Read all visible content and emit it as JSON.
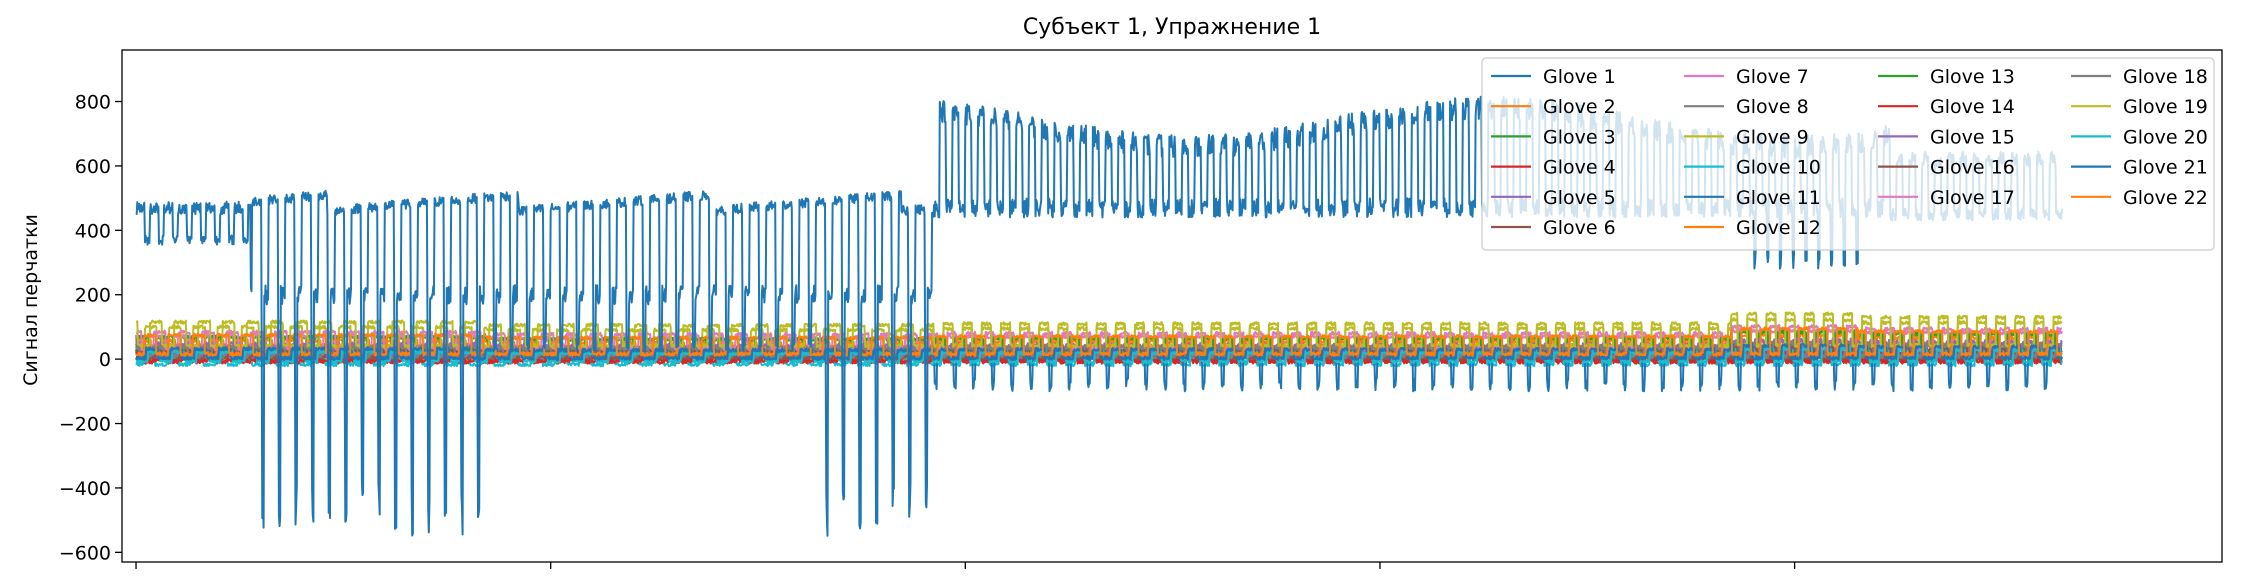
{
  "chart_data": {
    "type": "line",
    "title": "Субъект 1, Упражнение 1",
    "xlabel": "",
    "ylabel": "Сигнал перчатки",
    "ylim": [
      -630,
      960
    ],
    "xlim": [
      -22,
      3270
    ],
    "yticks": [
      -600,
      -400,
      -200,
      0,
      200,
      400,
      600,
      800
    ],
    "ytick_labels": [
      "−600",
      "−400",
      "−200",
      "0",
      "200",
      "400",
      "600",
      "800"
    ],
    "xticks": [
      0,
      650,
      1300,
      1950,
      2600
    ],
    "xtick_labels": [
      "",
      "",
      "",
      "",
      ""
    ],
    "grid": false,
    "legend": {
      "placement": "upper right",
      "columns": 4
    },
    "series": [
      {
        "name": "Glove 1",
        "color": "#1f77b4",
        "pattern": "g1"
      },
      {
        "name": "Glove 2",
        "color": "#ff7f0e",
        "pattern": "small",
        "base": 8,
        "amp": 18
      },
      {
        "name": "Glove 3",
        "color": "#2ca02c",
        "pattern": "small",
        "base": 30,
        "amp": 35
      },
      {
        "name": "Glove 4",
        "color": "#d62728",
        "pattern": "small",
        "base": -5,
        "amp": 12
      },
      {
        "name": "Glove 5",
        "color": "#9467bd",
        "pattern": "small",
        "base": 15,
        "amp": 25
      },
      {
        "name": "Glove 6",
        "color": "#8c564b",
        "pattern": "small",
        "base": 5,
        "amp": 15
      },
      {
        "name": "Glove 7",
        "color": "#e377c2",
        "pattern": "small",
        "base": 40,
        "amp": 30
      },
      {
        "name": "Glove 8",
        "color": "#7f7f7f",
        "pattern": "small",
        "base": 20,
        "amp": 20
      },
      {
        "name": "Glove 9",
        "color": "#bcbd22",
        "pattern": "small",
        "base": 50,
        "amp": 45
      },
      {
        "name": "Glove 10",
        "color": "#17becf",
        "pattern": "small",
        "base": -10,
        "amp": 20
      },
      {
        "name": "Glove 11",
        "color": "#1f77b4",
        "pattern": "g11"
      },
      {
        "name": "Glove 12",
        "color": "#ff7f0e",
        "pattern": "small",
        "base": 25,
        "amp": 30
      },
      {
        "name": "Glove 13",
        "color": "#2ca02c",
        "pattern": "small",
        "base": 35,
        "amp": 30
      },
      {
        "name": "Glove 14",
        "color": "#d62728",
        "pattern": "small",
        "base": 0,
        "amp": 15
      },
      {
        "name": "Glove 15",
        "color": "#9467bd",
        "pattern": "small",
        "base": 20,
        "amp": 25
      },
      {
        "name": "Glove 16",
        "color": "#8c564b",
        "pattern": "small",
        "base": 10,
        "amp": 15
      },
      {
        "name": "Glove 17",
        "color": "#e377c2",
        "pattern": "small",
        "base": 45,
        "amp": 35
      },
      {
        "name": "Glove 18",
        "color": "#7f7f7f",
        "pattern": "small",
        "base": 15,
        "amp": 20
      },
      {
        "name": "Glove 19",
        "color": "#bcbd22",
        "pattern": "small",
        "base": 60,
        "amp": 50
      },
      {
        "name": "Glove 20",
        "color": "#17becf",
        "pattern": "small",
        "base": 0,
        "amp": 20
      },
      {
        "name": "Glove 21",
        "color": "#1f77b4",
        "pattern": "small",
        "base": 10,
        "amp": 20
      },
      {
        "name": "Glove 22",
        "color": "#ff7f0e",
        "pattern": "small",
        "base": 30,
        "amp": 40
      }
    ]
  }
}
